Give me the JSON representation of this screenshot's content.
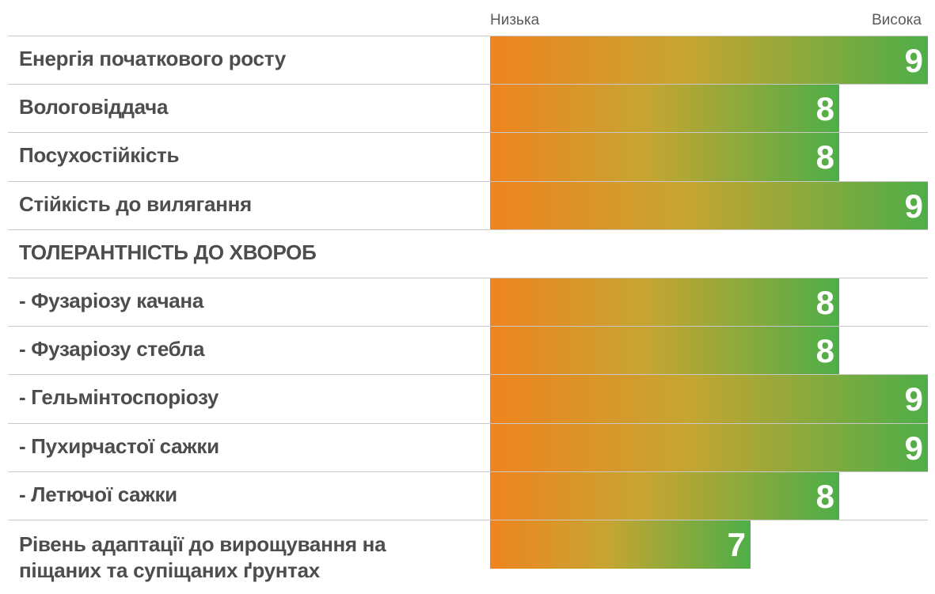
{
  "scale": {
    "low": "Низька",
    "high": "Висока"
  },
  "chart_data": {
    "type": "bar",
    "orientation": "horizontal",
    "xlim": [
      0,
      9
    ],
    "categories": [
      "Енергія початкового росту",
      "Вологовіддача",
      "Посухостійкість",
      "Стійкість до вилягання",
      "- Фузаріозу качана",
      "- Фузаріозу стебла",
      "- Гельмінтоспоріозу",
      "- Пухирчастої сажки",
      "- Летючої сажки",
      "Рівень адаптації до вирощування на піщаних та супіщаних ґрунтах"
    ],
    "values": [
      9,
      8,
      8,
      9,
      8,
      8,
      9,
      9,
      8,
      7
    ],
    "section_heading": "ТОЛЕРАНТНІСТЬ ДО ХВОРОБ",
    "colors": {
      "bar_start": "#ef8420",
      "bar_mid": "#c6a531",
      "bar_end": "#4fae48",
      "label": "#4d4d4f",
      "value": "#ffffff"
    }
  }
}
